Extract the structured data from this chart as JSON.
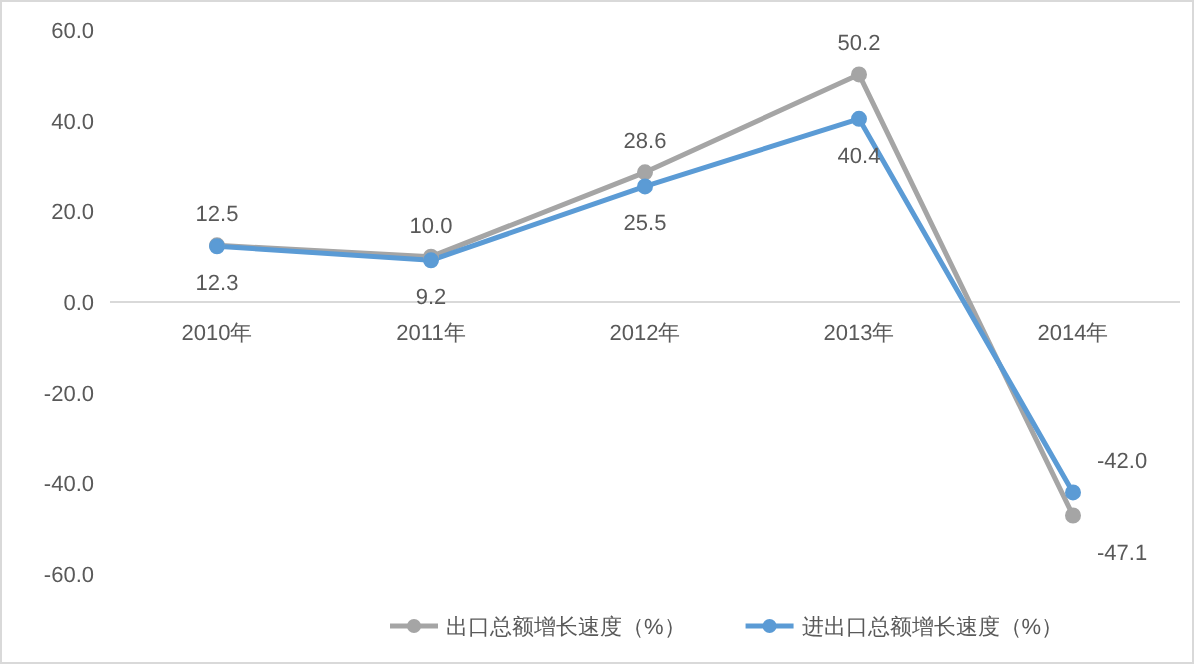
{
  "chart_data": {
    "type": "line",
    "categories": [
      "2010年",
      "2011年",
      "2012年",
      "2013年",
      "2014年"
    ],
    "series": [
      {
        "name": "出口总额增长速度（%）",
        "color": "#a5a5a5",
        "values": [
          12.5,
          10.0,
          28.6,
          50.2,
          -47.1
        ],
        "value_labels": [
          "12.5",
          "10.0",
          "28.6",
          "50.2",
          "-47.1"
        ]
      },
      {
        "name": "进出口总额增长速度（%）",
        "color": "#5b9bd5",
        "values": [
          12.3,
          9.2,
          25.5,
          40.4,
          -42.0
        ],
        "value_labels": [
          "12.3",
          "9.2",
          "25.5",
          "40.4",
          "-42.0"
        ]
      }
    ],
    "ylim": [
      -60,
      60
    ],
    "yticks": [
      {
        "value": -60,
        "label": "-60.0"
      },
      {
        "value": -40,
        "label": "-40.0"
      },
      {
        "value": -20,
        "label": "-20.0"
      },
      {
        "value": 0,
        "label": "0.0"
      },
      {
        "value": 20,
        "label": "20.0"
      },
      {
        "value": 40,
        "label": "40.0"
      },
      {
        "value": 60,
        "label": "60.0"
      }
    ],
    "marker": "circle",
    "legend": "bottom",
    "grid": false
  }
}
